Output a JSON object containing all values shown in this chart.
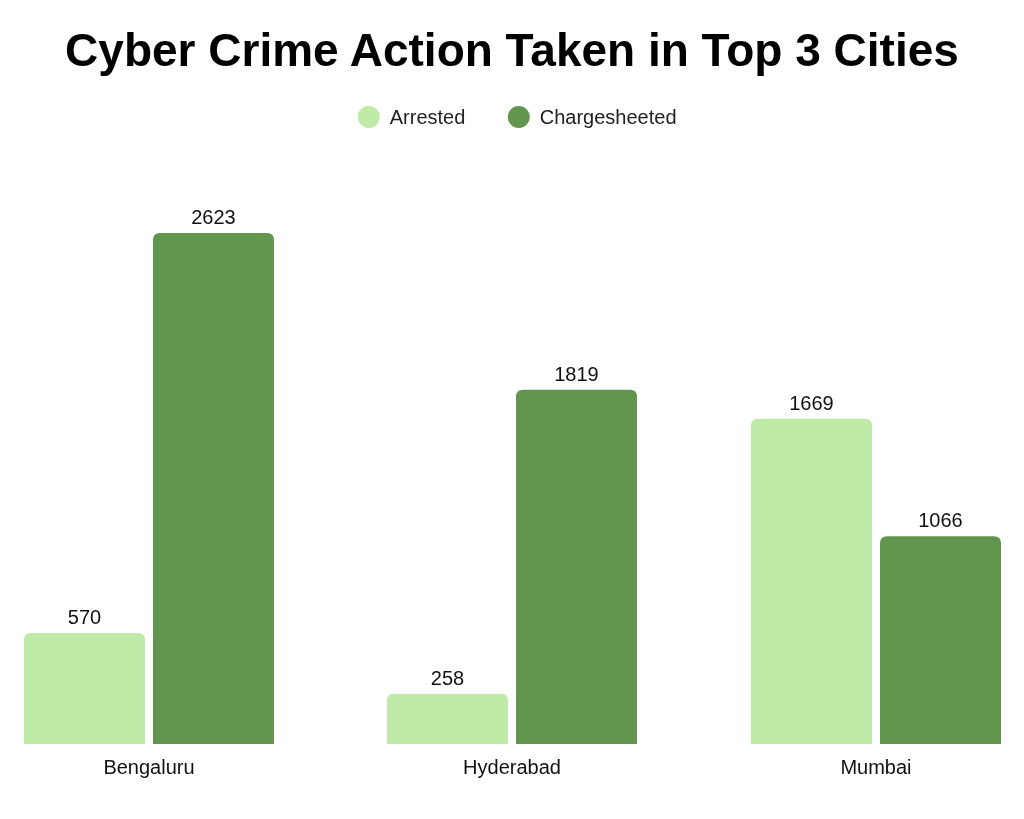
{
  "chart_data": {
    "type": "bar",
    "title": "Cyber Crime Action Taken in Top 3 Cities",
    "categories": [
      "Bengaluru",
      "Hyderabad",
      "Mumbai"
    ],
    "series": [
      {
        "name": "Arrested",
        "color": "#c0eaa8",
        "values": [
          570,
          258,
          1669
        ]
      },
      {
        "name": "Chargesheeted",
        "color": "#62964e",
        "values": [
          2623,
          1819,
          1066
        ]
      }
    ],
    "data_labels": true,
    "legend": "top"
  }
}
